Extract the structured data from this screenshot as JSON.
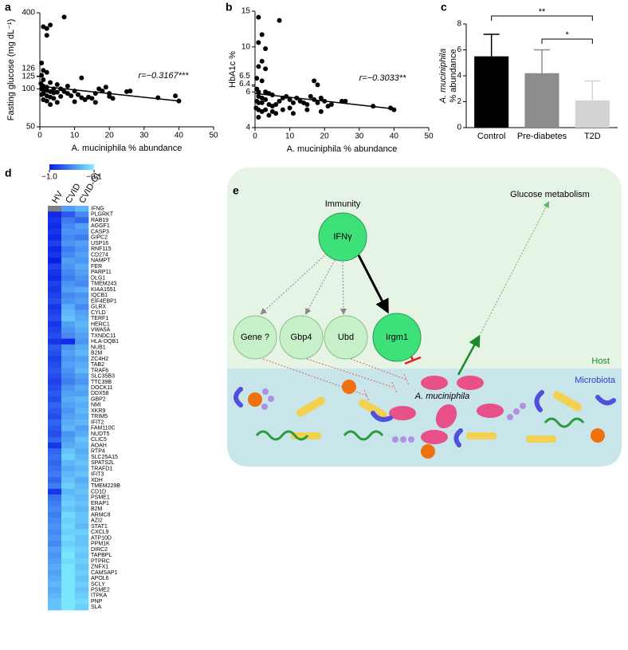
{
  "chart_data": [
    {
      "type": "scatter",
      "panel": "a",
      "xlabel": "A. muciniphila % abundance",
      "ylabel": "Fasting glucose (mg dL⁻¹)",
      "annotation": "r=−0.3167***",
      "log_y": true,
      "xlim": [
        0,
        50
      ],
      "xticks": [
        0,
        10,
        20,
        30,
        40,
        50
      ],
      "ylim": [
        50,
        400
      ],
      "yticks": [
        50,
        100,
        125,
        126,
        400
      ],
      "x": [
        1,
        2,
        3,
        2,
        7,
        12,
        0.5,
        1,
        2,
        0.5,
        1,
        3,
        5,
        1,
        2,
        0.5,
        1,
        2,
        3,
        4,
        1,
        0.5,
        2,
        3,
        4,
        1,
        2,
        5,
        6,
        7,
        8,
        9,
        10,
        11,
        12,
        13,
        14,
        15,
        16,
        17,
        18,
        19,
        20,
        20,
        21,
        25,
        26,
        34,
        39,
        40,
        3,
        10,
        16,
        8,
        6,
        4,
        0.3,
        5
      ],
      "y": [
        310,
        300,
        320,
        265,
        370,
        122,
        160,
        140,
        135,
        128,
        118,
        112,
        108,
        105,
        103,
        100,
        98,
        97,
        95,
        93,
        92,
        90,
        88,
        86,
        84,
        82,
        80,
        78,
        100,
        95,
        92,
        88,
        96,
        90,
        85,
        82,
        86,
        84,
        92,
        100,
        96,
        103,
        92,
        87,
        84,
        95,
        96,
        85,
        88,
        80,
        75,
        79,
        78,
        105,
        87,
        100,
        110,
        94
      ],
      "fit": {
        "x": [
          0,
          40
        ],
        "y": [
          105,
          80
        ]
      },
      "color": "#000000"
    },
    {
      "type": "scatter",
      "panel": "b",
      "xlabel": "A. muciniphila % abundance",
      "ylabel": "HbA1c %",
      "annotation": "r=−0.3033**",
      "log_y": true,
      "xlim": [
        0,
        50
      ],
      "xticks": [
        0,
        10,
        20,
        30,
        40,
        50
      ],
      "ylim": [
        4,
        15
      ],
      "yticks": [
        4,
        6,
        6.4,
        6.5,
        10,
        15
      ],
      "x": [
        1,
        7,
        2,
        1,
        3,
        2,
        1,
        3,
        0.5,
        2,
        17,
        18,
        0.5,
        1,
        3,
        4,
        5,
        1,
        2,
        3,
        0.5,
        1,
        2,
        4,
        5,
        6,
        7,
        8,
        9,
        10,
        11,
        12,
        13,
        14,
        15,
        16,
        17,
        18,
        19,
        20,
        21,
        22,
        25,
        26,
        34,
        40,
        39,
        1,
        2,
        3,
        5,
        8,
        10,
        11,
        15,
        19,
        1,
        4,
        6,
        0.3
      ],
      "y": [
        14,
        13.5,
        11.5,
        10.5,
        9.8,
        8.5,
        8,
        7.8,
        7,
        6.8,
        6.8,
        6.5,
        6.2,
        6,
        6,
        5.9,
        5.8,
        5.7,
        5.6,
        5.5,
        5.4,
        5.3,
        5.3,
        5.2,
        5.1,
        5.2,
        5.4,
        5.6,
        5.7,
        5.5,
        5.3,
        5.6,
        5.4,
        5.3,
        5.2,
        5.7,
        5.5,
        5.3,
        5.6,
        5.4,
        5.1,
        5.2,
        5.4,
        5.4,
        5.1,
        4.9,
        5.0,
        4.9,
        4.8,
        4.9,
        4.8,
        4.9,
        5.0,
        4.7,
        4.9,
        4.8,
        4.5,
        4.6,
        4.7,
        5.0
      ],
      "fit": {
        "x": [
          0,
          40
        ],
        "y": [
          5.9,
          4.95
        ]
      },
      "color": "#000000"
    },
    {
      "type": "bar",
      "panel": "c",
      "ylabel": [
        "A. muciniphila",
        "% abundance"
      ],
      "categories": [
        "Control",
        "Pre-diabetes",
        "T2D"
      ],
      "values": [
        5.5,
        4.2,
        2.1
      ],
      "errors": [
        1.7,
        1.8,
        1.5
      ],
      "colors": [
        "#000000",
        "#8c8c8c",
        "#d3d3d3"
      ],
      "ylim": [
        0,
        8
      ],
      "yticks": [
        0,
        2,
        4,
        6,
        8
      ],
      "annotations": [
        "**",
        "*"
      ]
    },
    {
      "type": "heatmap",
      "panel": "d",
      "columns": [
        "HV",
        "CVID",
        "CVID-GI"
      ],
      "clim": [
        -1.0,
        -0.1
      ],
      "colormap": [
        "#0a1ee6",
        "#7ff2ff"
      ],
      "missing_color": "#808080",
      "cticks": [
        {
          "value": -1.0,
          "label": "−1.0"
        },
        {
          "value": -0.1,
          "label": "−0.1"
        }
      ],
      "rows": [
        "IFNG",
        "PLGRKT",
        "RAB19",
        "AGGF1",
        "CASP3",
        "GIPC2",
        "USP16",
        "RNF115",
        "CD274",
        "NAMPT",
        "FER",
        "PARP11",
        "DLG1",
        "TMEM243",
        "KIAA1551",
        "IQCB1",
        "EIF4EBP1",
        "GLRX",
        "CYLD",
        "TERF1",
        "HERC1",
        "VWA5A",
        "TXNDC11",
        "HLA-DQB1",
        "NUB1",
        "B2M",
        "ZC4H2",
        "TAB2",
        "TRAF6",
        "SLC35B3",
        "TTC39B",
        "DOCK11",
        "DDX58",
        "GBP2",
        "NMI",
        "XKR9",
        "TRIM5",
        "IFIT2",
        "FAM110C",
        "NUDT5",
        "CLIC5",
        "AOAH",
        "RTP4",
        "SLC25A15",
        "SPATS2L",
        "TRAFD1",
        "IFIT3",
        "XDH",
        "TMEM229B",
        "CD1D",
        "PSME1",
        "ERAP1",
        "B2M",
        "ARMC8",
        "AZI2",
        "STAT1",
        "CXCL9",
        "ATP10D",
        "PPM1K",
        "DIRC2",
        "TAPBPL",
        "PTPRC",
        "ZNFX1",
        "CAMSAP1",
        "APOL6",
        "SCLY",
        "PSME2",
        "ITPKA",
        "PNP",
        "SLA"
      ],
      "values": [
        [
          null,
          -0.45,
          -0.35
        ],
        [
          -0.95,
          -0.75,
          -0.55
        ],
        [
          -0.9,
          -0.6,
          -0.7
        ],
        [
          -0.95,
          -0.55,
          -0.45
        ],
        [
          -0.9,
          -0.5,
          -0.5
        ],
        [
          -0.95,
          -0.55,
          -0.6
        ],
        [
          -0.85,
          -0.5,
          -0.45
        ],
        [
          -0.95,
          -0.6,
          -0.5
        ],
        [
          -0.9,
          -0.55,
          -0.45
        ],
        [
          -1.0,
          -0.45,
          -0.5
        ],
        [
          -0.85,
          -0.5,
          -0.4
        ],
        [
          -0.9,
          -0.55,
          -0.45
        ],
        [
          -0.95,
          -0.6,
          -0.5
        ],
        [
          -0.85,
          -0.5,
          -0.55
        ],
        [
          -0.9,
          -0.45,
          -0.4
        ],
        [
          -0.85,
          -0.55,
          -0.5
        ],
        [
          -0.8,
          -0.5,
          -0.45
        ],
        [
          -0.9,
          -0.4,
          -0.55
        ],
        [
          -0.85,
          -0.35,
          -0.45
        ],
        [
          -0.8,
          -0.3,
          -0.4
        ],
        [
          -0.9,
          -0.45,
          -0.35
        ],
        [
          -0.85,
          -0.5,
          -0.4
        ],
        [
          -0.8,
          -0.55,
          -0.45
        ],
        [
          -0.9,
          -0.95,
          -0.5
        ],
        [
          -0.75,
          -0.5,
          -0.4
        ],
        [
          -0.8,
          -0.45,
          -0.35
        ],
        [
          -0.85,
          -0.5,
          -0.45
        ],
        [
          -0.8,
          -0.45,
          -0.4
        ],
        [
          -0.75,
          -0.5,
          -0.35
        ],
        [
          -0.8,
          -0.55,
          -0.45
        ],
        [
          -0.85,
          -0.6,
          -0.5
        ],
        [
          -0.8,
          -0.5,
          -0.4
        ],
        [
          -0.75,
          -0.45,
          -0.45
        ],
        [
          -0.8,
          -0.4,
          -0.35
        ],
        [
          -0.7,
          -0.45,
          -0.4
        ],
        [
          -0.75,
          -0.5,
          -0.35
        ],
        [
          -0.8,
          -0.45,
          -0.4
        ],
        [
          -0.7,
          -0.4,
          -0.35
        ],
        [
          -0.75,
          -0.35,
          -0.45
        ],
        [
          -0.8,
          -0.5,
          -0.4
        ],
        [
          -0.7,
          -0.45,
          -0.3
        ],
        [
          -0.9,
          -0.4,
          -0.35
        ],
        [
          -0.7,
          -0.3,
          -0.4
        ],
        [
          -0.65,
          -0.25,
          -0.35
        ],
        [
          -0.7,
          -0.35,
          -0.3
        ],
        [
          -0.65,
          -0.4,
          -0.35
        ],
        [
          -0.6,
          -0.35,
          -0.3
        ],
        [
          -0.7,
          -0.3,
          -0.4
        ],
        [
          -0.6,
          -0.25,
          -0.35
        ],
        [
          -0.9,
          -0.35,
          -0.3
        ],
        [
          -0.65,
          -0.3,
          -0.35
        ],
        [
          -0.6,
          -0.25,
          -0.3
        ],
        [
          -0.55,
          -0.3,
          -0.35
        ],
        [
          -0.6,
          -0.2,
          -0.3
        ],
        [
          -0.55,
          -0.25,
          -0.3
        ],
        [
          -0.5,
          -0.2,
          -0.35
        ],
        [
          -0.55,
          -0.25,
          -0.25
        ],
        [
          -0.5,
          -0.2,
          -0.3
        ],
        [
          -0.55,
          -0.25,
          -0.3
        ],
        [
          -0.45,
          -0.2,
          -0.25
        ],
        [
          -0.5,
          -0.15,
          -0.3
        ],
        [
          -0.45,
          -0.2,
          -0.25
        ],
        [
          -0.4,
          -0.15,
          -0.3
        ],
        [
          -0.45,
          -0.15,
          -0.25
        ],
        [
          -0.4,
          -0.15,
          -0.3
        ],
        [
          -0.35,
          -0.15,
          -0.25
        ],
        [
          -0.4,
          -0.15,
          -0.3
        ],
        [
          -0.35,
          -0.15,
          -0.25
        ],
        [
          -0.3,
          -0.15,
          -0.2
        ],
        [
          -0.3,
          -0.15,
          -0.25
        ]
      ]
    }
  ],
  "diagram": {
    "panel": "e",
    "immunity": "Immunity",
    "glucose": "Glucose metabolism",
    "host": "Host",
    "microbiota": "Microbiota",
    "bacterium": "A. muciniphila",
    "nodes": [
      "IFNγ",
      "Gene ?",
      "Gbp4",
      "Ubd",
      "Irgm1"
    ]
  }
}
